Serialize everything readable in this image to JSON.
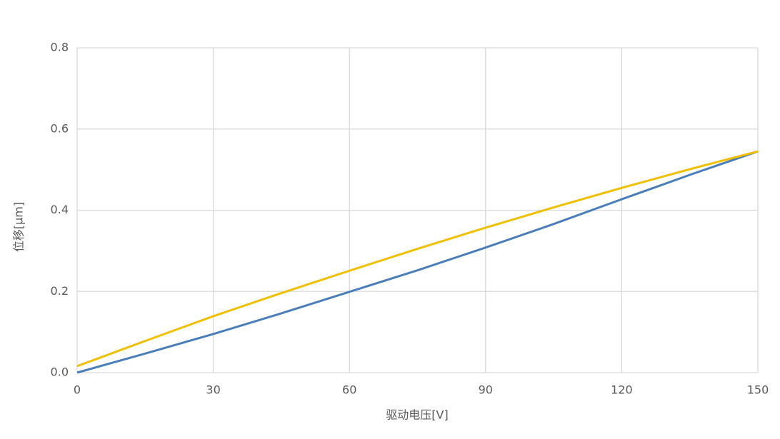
{
  "chart_data": {
    "type": "line",
    "x_label": "驱动电压[V]",
    "y_label": "位移[μm]",
    "x": [
      0,
      15,
      30,
      45,
      60,
      75,
      90,
      105,
      120,
      135,
      150
    ],
    "series": [
      {
        "color": "#4a7ebb",
        "values": [
          0,
          0.047,
          0.095,
          0.146,
          0.199,
          0.252,
          0.308,
          0.366,
          0.427,
          0.487,
          0.545
        ]
      },
      {
        "color": "#f0c000",
        "values": [
          0.016,
          0.078,
          0.139,
          0.196,
          0.251,
          0.305,
          0.357,
          0.407,
          0.455,
          0.501,
          0.545
        ]
      }
    ],
    "xlim": [
      0,
      150
    ],
    "xticks": [
      0,
      30,
      60,
      90,
      120,
      150
    ],
    "ylim": [
      0,
      0.8
    ],
    "yticks": [
      {
        "value": 0,
        "label": "0.0"
      },
      0.2,
      0.4,
      0.6,
      0.8
    ],
    "grid": true
  }
}
